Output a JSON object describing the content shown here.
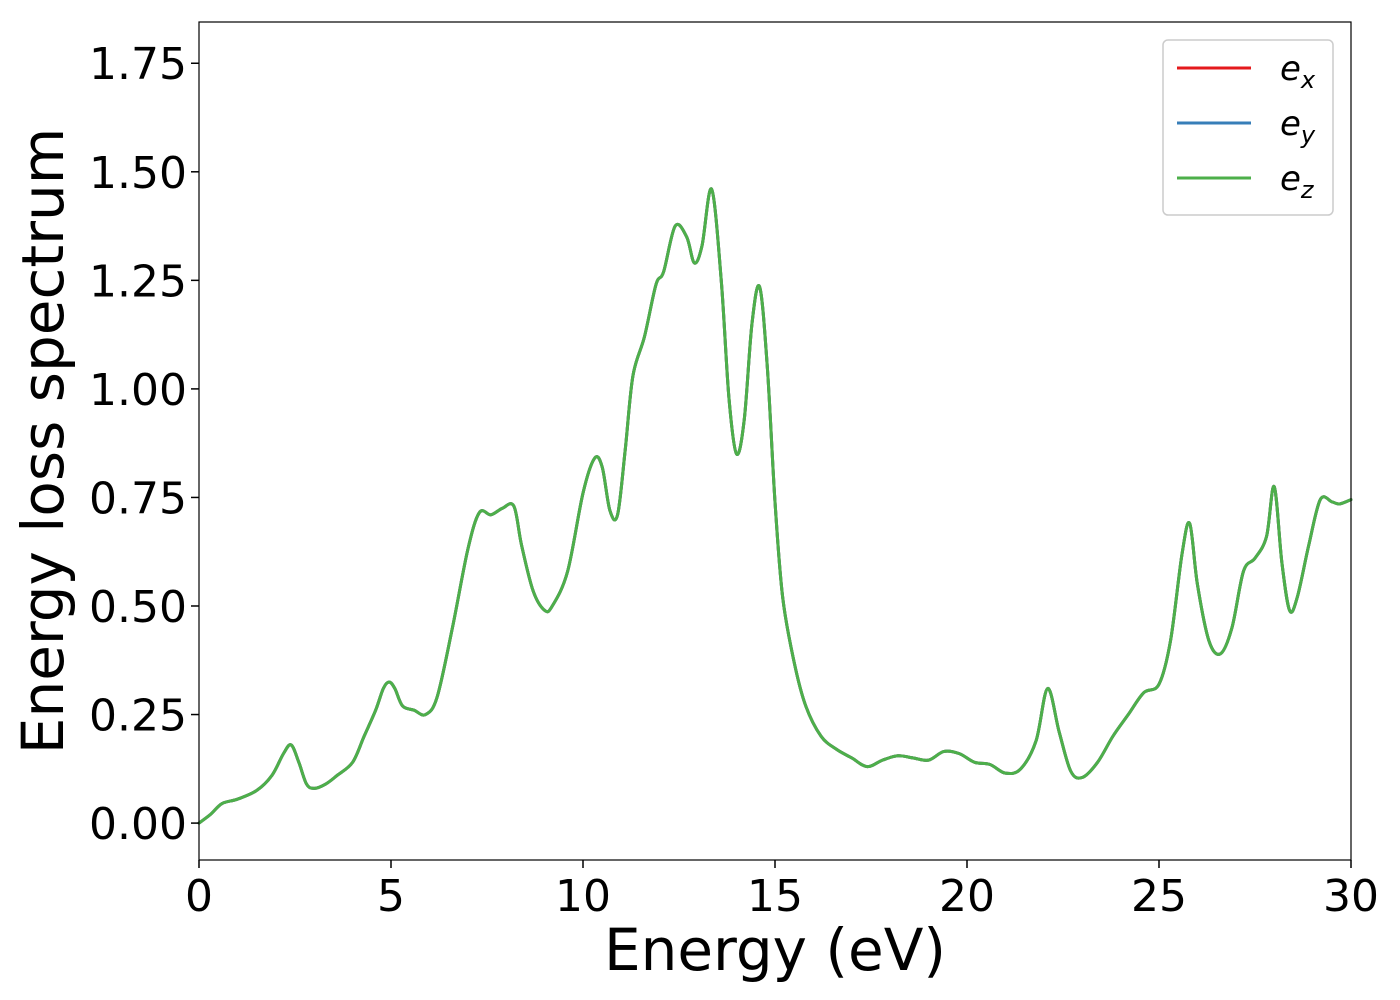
{
  "chart_data": {
    "type": "line",
    "title": "",
    "xlabel": "Energy (eV)",
    "ylabel": "Energy loss spectrum",
    "xlim": [
      0,
      30
    ],
    "ylim": [
      -0.085,
      1.845
    ],
    "xticks": [
      0,
      5,
      10,
      15,
      20,
      25,
      30
    ],
    "xtick_labels": [
      "0",
      "5",
      "10",
      "15",
      "20",
      "25",
      "30"
    ],
    "yticks": [
      0,
      0.25,
      0.5,
      0.75,
      1.0,
      1.25,
      1.5,
      1.75
    ],
    "ytick_labels": [
      "0.00",
      "0.25",
      "0.50",
      "0.75",
      "1.00",
      "1.25",
      "1.50",
      "1.75"
    ],
    "grid": false,
    "legend_position": "top-right",
    "x": [
      0,
      0.3,
      0.6,
      1.0,
      1.5,
      1.9,
      2.2,
      2.4,
      2.6,
      2.8,
      3.0,
      3.3,
      3.6,
      4.0,
      4.3,
      4.6,
      4.8,
      4.95,
      5.1,
      5.3,
      5.6,
      5.9,
      6.2,
      6.6,
      7.0,
      7.3,
      7.6,
      7.9,
      8.2,
      8.4,
      8.7,
      9.0,
      9.2,
      9.6,
      10.0,
      10.3,
      10.5,
      10.7,
      10.9,
      11.1,
      11.3,
      11.6,
      11.9,
      12.1,
      12.4,
      12.7,
      12.9,
      13.1,
      13.35,
      13.6,
      13.8,
      14.0,
      14.2,
      14.4,
      14.6,
      14.8,
      15.0,
      15.2,
      15.5,
      15.8,
      16.2,
      16.6,
      17.0,
      17.4,
      17.8,
      18.2,
      18.6,
      19.0,
      19.4,
      19.8,
      20.2,
      20.6,
      21.0,
      21.4,
      21.8,
      22.1,
      22.4,
      22.7,
      23.0,
      23.4,
      23.8,
      24.2,
      24.6,
      25.0,
      25.3,
      25.6,
      25.8,
      26.0,
      26.3,
      26.6,
      26.9,
      27.2,
      27.5,
      27.8,
      28.0,
      28.2,
      28.4,
      28.6,
      28.9,
      29.2,
      29.5,
      29.7,
      30.0
    ],
    "series": [
      {
        "name": "e_x",
        "color": "#e41a1c",
        "y": [
          0.0,
          0.02,
          0.045,
          0.055,
          0.075,
          0.11,
          0.16,
          0.18,
          0.14,
          0.09,
          0.08,
          0.09,
          0.11,
          0.14,
          0.2,
          0.26,
          0.31,
          0.325,
          0.31,
          0.27,
          0.26,
          0.25,
          0.29,
          0.45,
          0.63,
          0.715,
          0.71,
          0.725,
          0.73,
          0.64,
          0.535,
          0.49,
          0.5,
          0.58,
          0.76,
          0.84,
          0.82,
          0.72,
          0.71,
          0.86,
          1.03,
          1.12,
          1.24,
          1.27,
          1.375,
          1.35,
          1.29,
          1.33,
          1.46,
          1.25,
          0.98,
          0.85,
          0.93,
          1.15,
          1.235,
          1.05,
          0.74,
          0.52,
          0.37,
          0.27,
          0.2,
          0.17,
          0.15,
          0.13,
          0.145,
          0.155,
          0.15,
          0.145,
          0.165,
          0.16,
          0.14,
          0.135,
          0.115,
          0.125,
          0.19,
          0.31,
          0.21,
          0.12,
          0.105,
          0.14,
          0.2,
          0.25,
          0.3,
          0.32,
          0.42,
          0.62,
          0.69,
          0.55,
          0.42,
          0.39,
          0.45,
          0.58,
          0.61,
          0.66,
          0.775,
          0.6,
          0.49,
          0.52,
          0.64,
          0.745,
          0.74,
          0.735,
          0.745
        ]
      },
      {
        "name": "e_y",
        "color": "#377eb8",
        "y": [
          0.0,
          0.02,
          0.045,
          0.055,
          0.075,
          0.11,
          0.16,
          0.18,
          0.14,
          0.09,
          0.08,
          0.09,
          0.11,
          0.14,
          0.2,
          0.26,
          0.31,
          0.325,
          0.31,
          0.27,
          0.26,
          0.25,
          0.29,
          0.45,
          0.63,
          0.715,
          0.71,
          0.725,
          0.73,
          0.64,
          0.535,
          0.49,
          0.5,
          0.58,
          0.76,
          0.84,
          0.82,
          0.72,
          0.71,
          0.86,
          1.03,
          1.12,
          1.24,
          1.27,
          1.375,
          1.35,
          1.29,
          1.33,
          1.46,
          1.25,
          0.98,
          0.85,
          0.93,
          1.15,
          1.235,
          1.05,
          0.74,
          0.52,
          0.37,
          0.27,
          0.2,
          0.17,
          0.15,
          0.13,
          0.145,
          0.155,
          0.15,
          0.145,
          0.165,
          0.16,
          0.14,
          0.135,
          0.115,
          0.125,
          0.19,
          0.31,
          0.21,
          0.12,
          0.105,
          0.14,
          0.2,
          0.25,
          0.3,
          0.32,
          0.42,
          0.62,
          0.69,
          0.55,
          0.42,
          0.39,
          0.45,
          0.58,
          0.61,
          0.66,
          0.775,
          0.6,
          0.49,
          0.52,
          0.64,
          0.745,
          0.74,
          0.735,
          0.745
        ]
      },
      {
        "name": "e_z",
        "color": "#4daf4a",
        "y": [
          0.0,
          0.02,
          0.045,
          0.055,
          0.075,
          0.11,
          0.16,
          0.18,
          0.14,
          0.09,
          0.08,
          0.09,
          0.11,
          0.14,
          0.2,
          0.26,
          0.31,
          0.325,
          0.31,
          0.27,
          0.26,
          0.25,
          0.29,
          0.45,
          0.63,
          0.715,
          0.71,
          0.725,
          0.73,
          0.64,
          0.535,
          0.49,
          0.5,
          0.58,
          0.76,
          0.84,
          0.82,
          0.72,
          0.71,
          0.86,
          1.03,
          1.12,
          1.24,
          1.27,
          1.375,
          1.35,
          1.29,
          1.33,
          1.46,
          1.25,
          0.98,
          0.85,
          0.93,
          1.15,
          1.235,
          1.05,
          0.74,
          0.52,
          0.37,
          0.27,
          0.2,
          0.17,
          0.15,
          0.13,
          0.145,
          0.155,
          0.15,
          0.145,
          0.165,
          0.16,
          0.14,
          0.135,
          0.115,
          0.125,
          0.19,
          0.31,
          0.21,
          0.12,
          0.105,
          0.14,
          0.2,
          0.25,
          0.3,
          0.32,
          0.42,
          0.62,
          0.69,
          0.55,
          0.42,
          0.39,
          0.45,
          0.58,
          0.61,
          0.66,
          0.775,
          0.6,
          0.49,
          0.52,
          0.64,
          0.745,
          0.74,
          0.735,
          0.745
        ]
      }
    ],
    "legend": [
      {
        "base": "e",
        "sub": "x",
        "color": "#e41a1c"
      },
      {
        "base": "e",
        "sub": "y",
        "color": "#377eb8"
      },
      {
        "base": "e",
        "sub": "z",
        "color": "#4daf4a"
      }
    ]
  }
}
